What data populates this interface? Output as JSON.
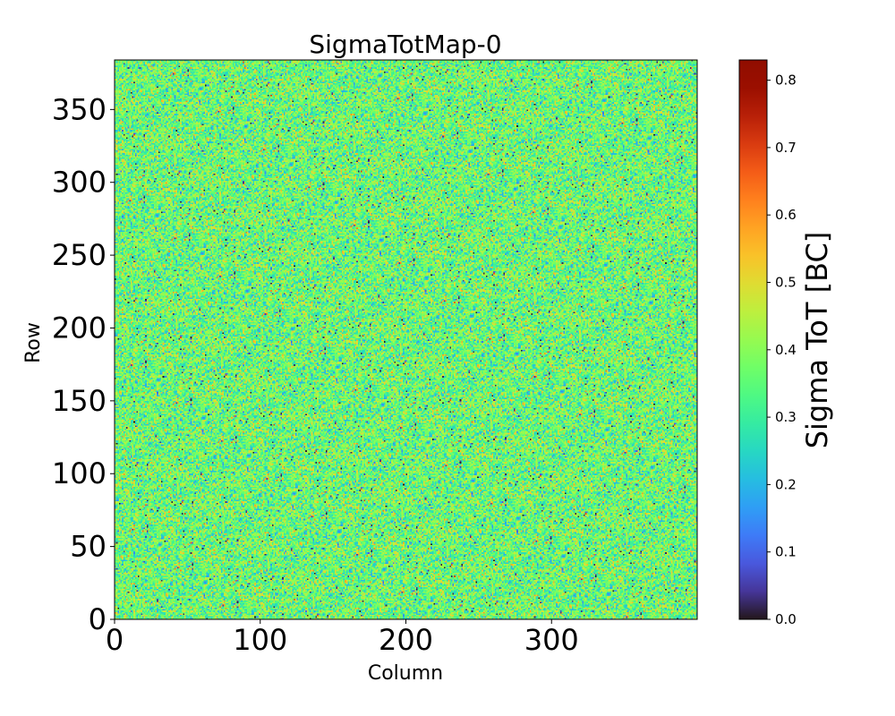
{
  "chart_data": {
    "type": "heatmap",
    "title": "SigmaTotMap-0",
    "xlabel": "Column",
    "ylabel": "Row",
    "xlim": [
      0,
      400
    ],
    "ylim": [
      0,
      384
    ],
    "x_ticks": [
      0,
      100,
      200,
      300
    ],
    "y_ticks": [
      0,
      50,
      100,
      150,
      200,
      250,
      300,
      350
    ],
    "colorbar": {
      "label": "Sigma ToT [BC]",
      "range": [
        0.0,
        0.83
      ],
      "ticks": [
        "0.0",
        "0.1",
        "0.2",
        "0.3",
        "0.4",
        "0.5",
        "0.6",
        "0.7",
        "0.8"
      ],
      "colormap": "turbo"
    },
    "value_distribution": {
      "mean": 0.36,
      "std": 0.09,
      "min": 0.0,
      "max": 0.83
    }
  }
}
